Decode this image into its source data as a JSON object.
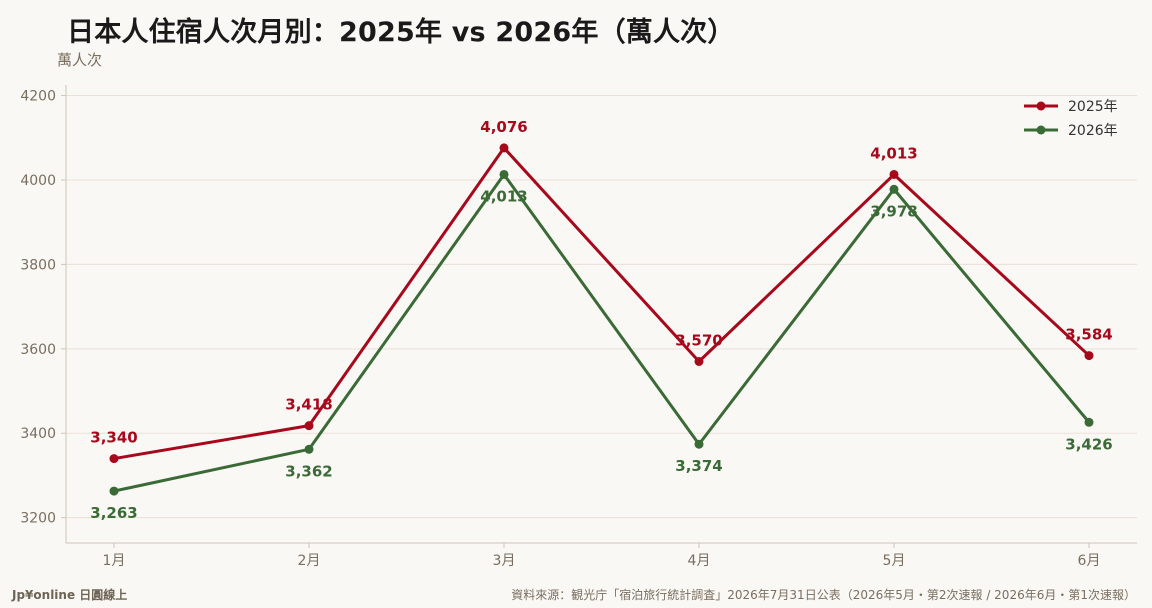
{
  "header": {
    "title": "日本人住宿人次月別：2025年 vs 2026年（萬人次）",
    "unit": "萬人次"
  },
  "footer": {
    "brand": "Jp¥online 日圓線上",
    "source": "資料來源：観光庁「宿泊旅行統計調査」2026年7月31日公表（2026年5月・第2次速報 / 2026年6月・第1次速報）"
  },
  "chart_data": {
    "type": "line",
    "title": "日本人住宿人次月別：2025年 vs 2026年（萬人次）",
    "ylabel": "萬人次",
    "xlabel": "",
    "categories": [
      "1月",
      "2月",
      "3月",
      "4月",
      "5月",
      "6月"
    ],
    "ylim": [
      3140,
      4225
    ],
    "yticks": [
      3200,
      3400,
      3600,
      3800,
      4000,
      4200
    ],
    "grid": true,
    "legend_position": "top-right",
    "series": [
      {
        "name": "2025年",
        "color": "#a8081c",
        "values": [
          3340,
          3418,
          4076,
          3570,
          4013,
          3584
        ],
        "labels": [
          "3,340",
          "3,418",
          "4,076",
          "3,570",
          "4,013",
          "3,584"
        ],
        "label_position": "above"
      },
      {
        "name": "2026年",
        "color": "#3a6b37",
        "values": [
          3263,
          3362,
          4013,
          3374,
          3978,
          3426
        ],
        "labels": [
          "3,263",
          "3,362",
          "4,013",
          "3,374",
          "3,978",
          "3,426"
        ],
        "label_position": "below"
      }
    ]
  }
}
